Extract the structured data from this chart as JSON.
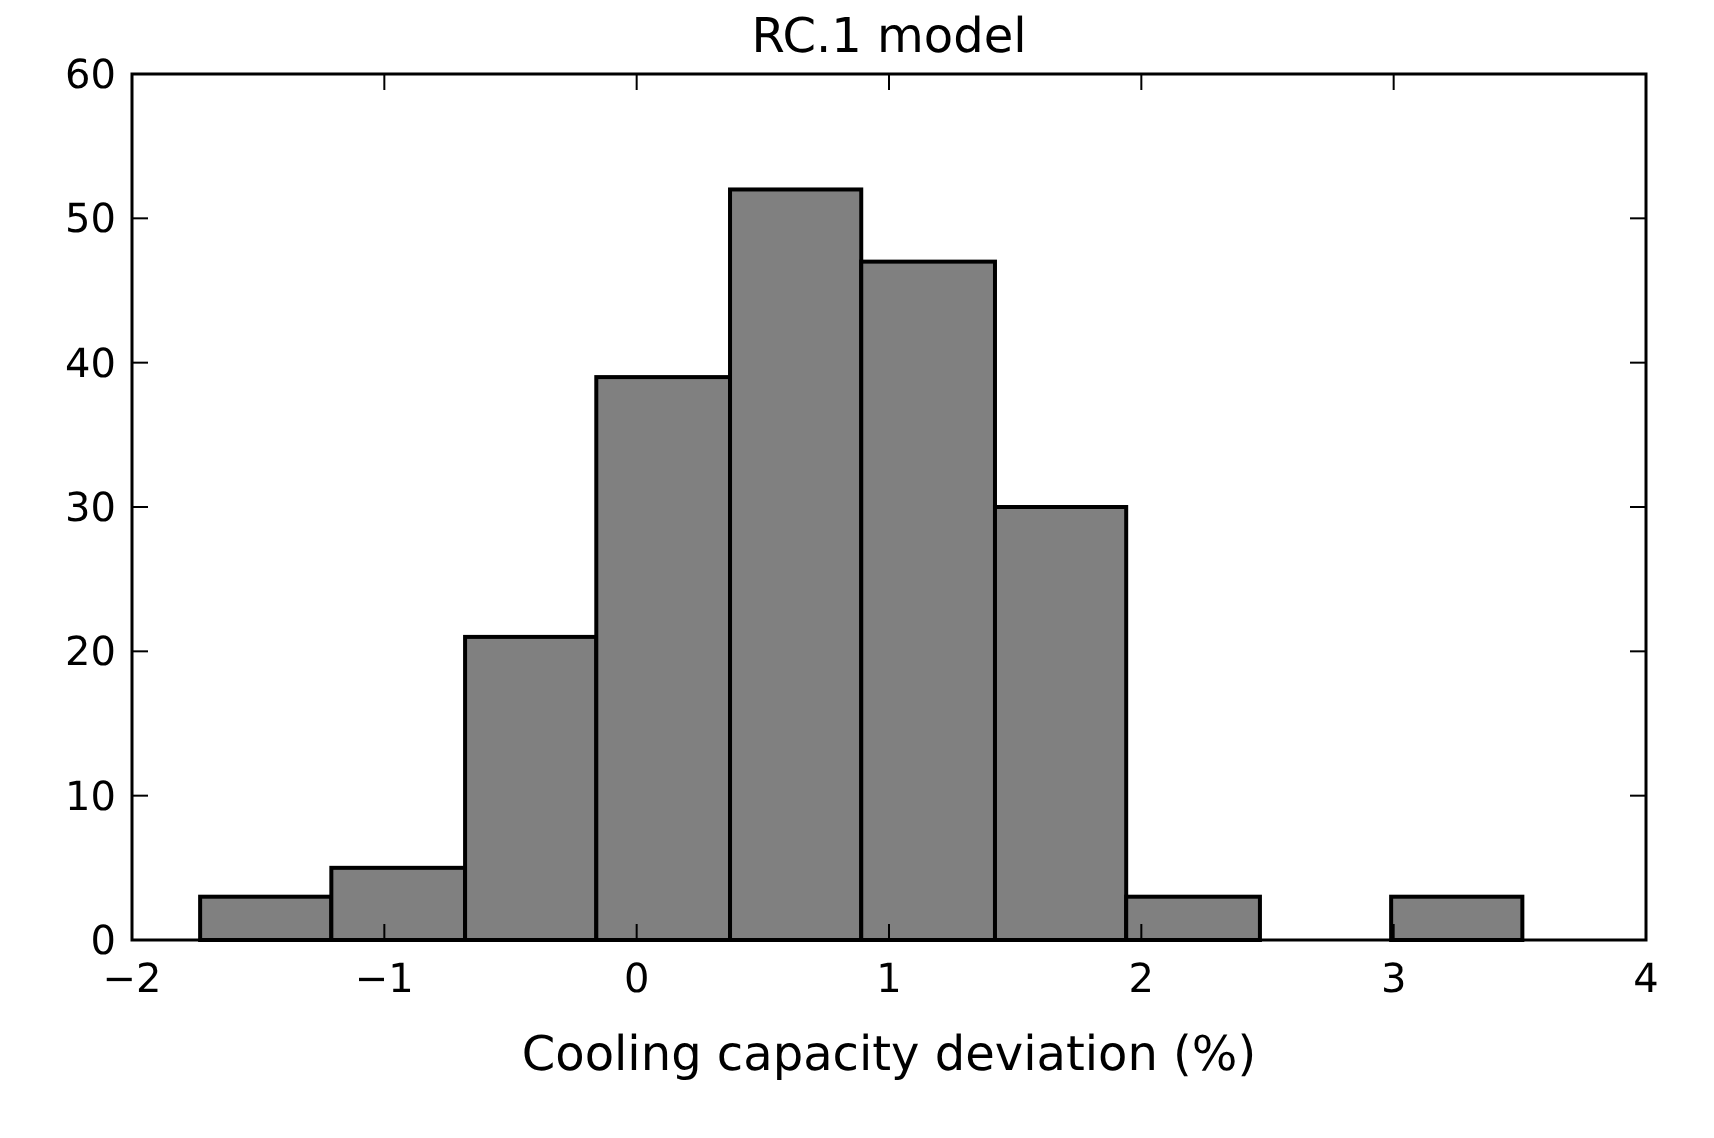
{
  "chart_data": {
    "type": "histogram",
    "title": "RC.1 model",
    "xlabel": "Cooling capacity deviation (%)",
    "bins": [
      -1.73,
      -1.21,
      -0.68,
      -0.16,
      0.37,
      0.89,
      1.42,
      1.94,
      2.47,
      2.99,
      3.51
    ],
    "values": [
      3,
      5,
      21,
      39,
      52,
      47,
      30,
      3,
      0,
      3
    ],
    "color": "#808080",
    "xlim": [
      -2,
      4
    ],
    "xticks": [
      {
        "value": -2,
        "label": "−2"
      },
      {
        "value": -1,
        "label": "−1"
      },
      0,
      1,
      2,
      3,
      4
    ],
    "ylim": [
      0,
      60
    ],
    "yticks": [
      0,
      10,
      20,
      30,
      40,
      50,
      60
    ],
    "grid": false
  }
}
